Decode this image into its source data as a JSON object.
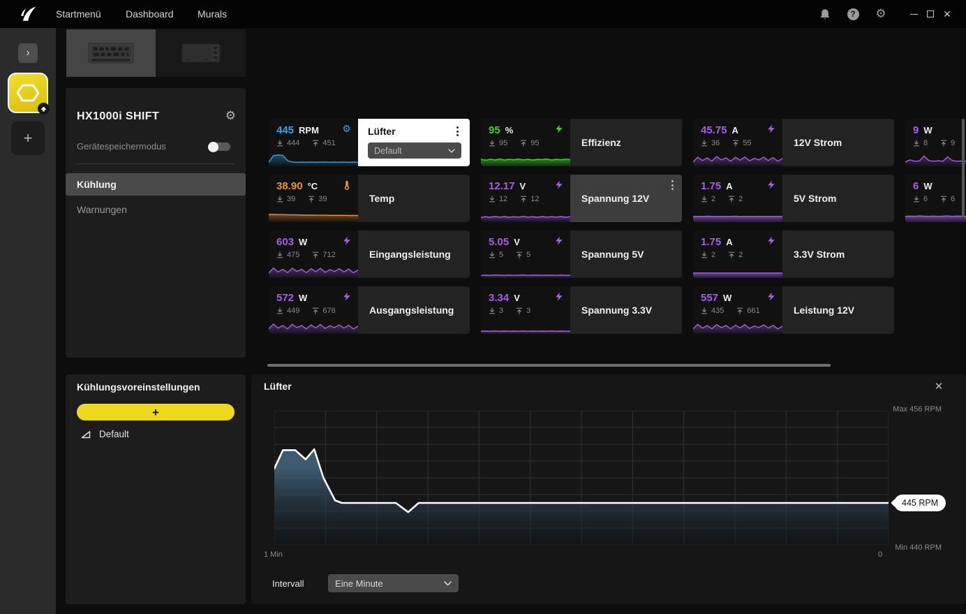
{
  "titlebar": {
    "menu": [
      "Startmenü",
      "Dashboard",
      "Murals"
    ]
  },
  "sidebar": {
    "expand": "›",
    "add_device": "+"
  },
  "device_panel": {
    "title": "HX1000i SHIFT",
    "memory_mode_label": "Gerätespeichermodus",
    "memory_mode_on": false,
    "nav": [
      {
        "label": "Kühlung",
        "active": true
      },
      {
        "label": "Warnungen",
        "active": false
      }
    ]
  },
  "presets_panel": {
    "title": "Kühlungsvoreinstellungen",
    "add_label": "+",
    "items": [
      {
        "label": "Default"
      }
    ]
  },
  "tiles": [
    {
      "id": "fan",
      "row": 1,
      "col": 1,
      "value": "445",
      "unit": "RPM",
      "min": "444",
      "max": "451",
      "label": "Lüfter",
      "color": "#35a3e8",
      "icon": "gear-icon",
      "variant": "white-header",
      "menu": true,
      "dropdown": "Default",
      "fill": "soft",
      "spark": [
        0.22,
        0.72,
        0.78,
        0.74,
        0.34,
        0.24,
        0.22,
        0.23,
        0.22,
        0.24,
        0.22,
        0.23,
        0.24,
        0.22,
        0.23,
        0.22,
        0.24,
        0.22,
        0.23,
        0.22
      ]
    },
    {
      "id": "efficiency",
      "row": 1,
      "col": 2,
      "value": "95",
      "unit": "%",
      "min": "95",
      "max": "95",
      "label": "Effizienz",
      "color": "#3ed32b",
      "icon": "bolt-icon",
      "fill": "area",
      "spark": [
        0.45,
        0.38,
        0.46,
        0.4,
        0.47,
        0.39,
        0.45,
        0.41,
        0.47,
        0.4,
        0.46,
        0.39,
        0.45,
        0.42,
        0.47,
        0.4,
        0.45,
        0.41,
        0.46,
        0.42
      ]
    },
    {
      "id": "current-12v",
      "row": 1,
      "col": 3,
      "value": "45.75",
      "unit": "A",
      "min": "36",
      "max": "55",
      "label": "12V Strom",
      "color": "#a55fe8",
      "icon": "bolt-icon",
      "fill": "soft",
      "spark": [
        0.25,
        0.6,
        0.35,
        0.55,
        0.3,
        0.65,
        0.4,
        0.55,
        0.3,
        0.6,
        0.38,
        0.62,
        0.33,
        0.52,
        0.4,
        0.6,
        0.35,
        0.58,
        0.3,
        0.5
      ]
    },
    {
      "id": "power-9w",
      "row": 1,
      "col": 4,
      "value": "9",
      "unit": "W",
      "min": "8",
      "max": "9",
      "label": "",
      "color": "#a55fe8",
      "icon": "bolt-icon",
      "partial": true,
      "fill": "soft",
      "spark": [
        0.25,
        0.4,
        0.3,
        0.32,
        0.7,
        0.35,
        0.3,
        0.33,
        0.3,
        0.62,
        0.35,
        0.3,
        0.32,
        0.3,
        0.75,
        0.4,
        0.33,
        0.3,
        0.35,
        0.85
      ]
    },
    {
      "id": "temp",
      "row": 2,
      "col": 1,
      "value": "38.90",
      "unit": "°C",
      "min": "39",
      "max": "39",
      "label": "Temp",
      "color": "#e8953c",
      "icon": "thermometer-icon",
      "fill": "soft",
      "spark": [
        0.5,
        0.5,
        0.49,
        0.49,
        0.48,
        0.47,
        0.47,
        0.46,
        0.45,
        0.45,
        0.44,
        0.44,
        0.44,
        0.43,
        0.43,
        0.43,
        0.43,
        0.42,
        0.42,
        0.42
      ]
    },
    {
      "id": "voltage-12v",
      "row": 2,
      "col": 2,
      "value": "12.17",
      "unit": "V",
      "min": "12",
      "max": "12",
      "label": "Spannung 12V",
      "color": "#a55fe8",
      "icon": "bolt-icon",
      "variant": "hover",
      "menu": true,
      "fill": "soft",
      "spark": [
        0.28,
        0.33,
        0.29,
        0.35,
        0.3,
        0.34,
        0.29,
        0.33,
        0.3,
        0.35,
        0.3,
        0.33,
        0.29,
        0.34,
        0.3,
        0.33,
        0.3,
        0.34,
        0.29,
        0.33
      ]
    },
    {
      "id": "current-5v",
      "row": 2,
      "col": 3,
      "value": "1.75",
      "unit": "A",
      "min": "2",
      "max": "2",
      "label": "5V Strom",
      "color": "#a55fe8",
      "icon": "bolt-icon",
      "fill": "area",
      "spark": [
        0.34,
        0.36,
        0.34,
        0.37,
        0.35,
        0.34,
        0.36,
        0.34,
        0.35,
        0.37,
        0.34,
        0.36,
        0.35,
        0.34,
        0.36,
        0.35,
        0.34,
        0.36,
        0.34,
        0.35
      ]
    },
    {
      "id": "power-6w",
      "row": 2,
      "col": 4,
      "value": "6",
      "unit": "W",
      "min": "6",
      "max": "6",
      "label": "",
      "color": "#a55fe8",
      "icon": "bolt-icon",
      "partial": true,
      "fill": "area",
      "spark": [
        0.36,
        0.38,
        0.36,
        0.39,
        0.37,
        0.36,
        0.38,
        0.36,
        0.37,
        0.39,
        0.36,
        0.38,
        0.37,
        0.36,
        0.38,
        0.37,
        0.36,
        0.38,
        0.36,
        0.37
      ]
    },
    {
      "id": "input-power",
      "row": 3,
      "col": 1,
      "value": "603",
      "unit": "W",
      "min": "475",
      "max": "712",
      "label": "Eingangsleistung",
      "color": "#a55fe8",
      "icon": "bolt-icon",
      "fill": "soft",
      "spark": [
        0.3,
        0.68,
        0.38,
        0.58,
        0.32,
        0.66,
        0.42,
        0.58,
        0.32,
        0.62,
        0.4,
        0.65,
        0.35,
        0.55,
        0.42,
        0.62,
        0.38,
        0.6,
        0.32,
        0.52
      ]
    },
    {
      "id": "voltage-5v",
      "row": 3,
      "col": 2,
      "value": "5.05",
      "unit": "V",
      "min": "5",
      "max": "5",
      "label": "Spannung 5V",
      "color": "#a55fe8",
      "icon": "bolt-icon",
      "fill": "soft",
      "spark": [
        0.12,
        0.14,
        0.12,
        0.15,
        0.13,
        0.12,
        0.14,
        0.12,
        0.13,
        0.15,
        0.12,
        0.14,
        0.13,
        0.12,
        0.14,
        0.13,
        0.12,
        0.14,
        0.12,
        0.13
      ]
    },
    {
      "id": "current-3v3",
      "row": 3,
      "col": 3,
      "value": "1.75",
      "unit": "A",
      "min": "2",
      "max": "2",
      "label": "3.3V Strom",
      "color": "#a55fe8",
      "icon": "bolt-icon",
      "fill": "area",
      "spark": [
        0.3,
        0.3,
        0.3,
        0.3,
        0.3,
        0.3,
        0.3,
        0.3,
        0.3,
        0.3,
        0.3,
        0.3,
        0.3,
        0.3,
        0.3,
        0.3,
        0.3,
        0.3,
        0.3,
        0.3
      ]
    },
    {
      "id": "output-power",
      "row": 4,
      "col": 1,
      "value": "572",
      "unit": "W",
      "min": "449",
      "max": "676",
      "label": "Ausgangsleistung",
      "color": "#a55fe8",
      "icon": "bolt-icon",
      "fill": "soft",
      "spark": [
        0.3,
        0.66,
        0.36,
        0.56,
        0.3,
        0.64,
        0.4,
        0.56,
        0.3,
        0.6,
        0.38,
        0.63,
        0.33,
        0.53,
        0.4,
        0.6,
        0.36,
        0.58,
        0.3,
        0.5
      ]
    },
    {
      "id": "voltage-3v3",
      "row": 4,
      "col": 2,
      "value": "3.34",
      "unit": "V",
      "min": "3",
      "max": "3",
      "label": "Spannung 3.3V",
      "color": "#a55fe8",
      "icon": "bolt-icon",
      "fill": "soft",
      "spark": [
        0.12,
        0.13,
        0.12,
        0.14,
        0.12,
        0.13,
        0.12,
        0.13,
        0.12,
        0.14,
        0.12,
        0.13,
        0.12,
        0.13,
        0.12,
        0.14,
        0.12,
        0.13,
        0.12,
        0.13
      ]
    },
    {
      "id": "power-12v",
      "row": 4,
      "col": 3,
      "value": "557",
      "unit": "W",
      "min": "435",
      "max": "661",
      "label": "Leistung 12V",
      "color": "#a55fe8",
      "icon": "bolt-icon",
      "fill": "soft",
      "spark": [
        0.3,
        0.64,
        0.36,
        0.55,
        0.3,
        0.62,
        0.4,
        0.55,
        0.3,
        0.58,
        0.38,
        0.62,
        0.33,
        0.52,
        0.4,
        0.6,
        0.36,
        0.57,
        0.3,
        0.5
      ]
    }
  ],
  "chart_panel": {
    "title": "Lüfter",
    "max_label": "Max 456 RPM",
    "min_label": "Min 440 RPM",
    "tooltip": "445 RPM",
    "x_start_label": "1 Min",
    "x_end_label": "0",
    "interval_label": "Intervall",
    "interval_value": "Eine Minute"
  },
  "chart_data": {
    "type": "area",
    "title": "Lüfter",
    "unit": "RPM",
    "ylim": [
      440,
      456
    ],
    "current_value": 445,
    "x_range_label": "1 Min",
    "x_end_label": "0",
    "grid": {
      "on": true,
      "cols": 12,
      "rows": 8
    },
    "points": [
      [
        0,
        449.1
      ],
      [
        1.4,
        451.3
      ],
      [
        3.4,
        451.3
      ],
      [
        5.1,
        450.2
      ],
      [
        6.5,
        451.4
      ],
      [
        8,
        448.0
      ],
      [
        9.9,
        445.3
      ],
      [
        11,
        445.0
      ],
      [
        19.8,
        445.0
      ],
      [
        21.8,
        443.9
      ],
      [
        23.5,
        445.0
      ],
      [
        100,
        445.0
      ]
    ],
    "line_color": "#ffffff",
    "fill_top_color": "#41617a",
    "fill_bottom_color": "#0d141b"
  },
  "colors": {
    "accent_yellow": "#ecd91d",
    "blue": "#35a3e8",
    "green": "#3ed32b",
    "purple": "#a55fe8",
    "orange": "#e8953c",
    "grid": "#333333"
  }
}
